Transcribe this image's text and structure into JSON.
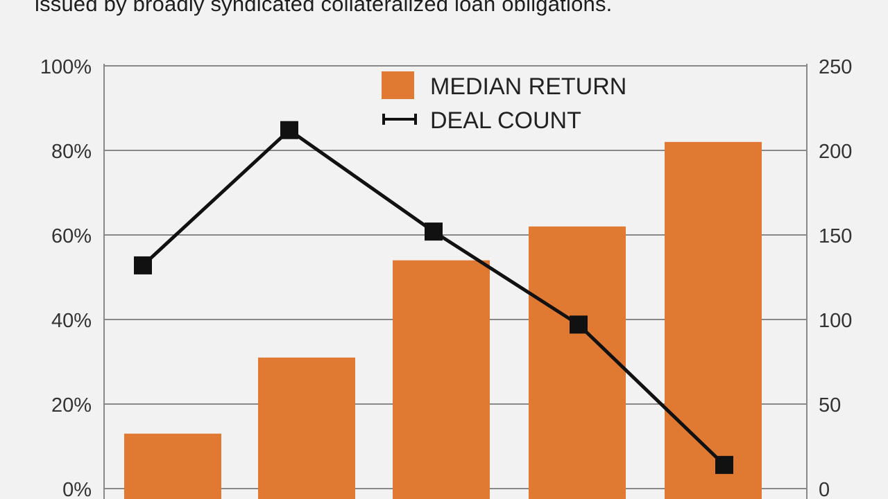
{
  "caption": "issued by broadly syndicated collateralized loan obligations.",
  "colors": {
    "bar": "#e07a33",
    "line": "#111111",
    "grid": "#888888",
    "background": "#f2f2f2"
  },
  "chart_data": {
    "type": "bar",
    "title": "",
    "xlabel": "",
    "ylabel": "",
    "categories": [
      "",
      "",
      "",
      "",
      ""
    ],
    "y_left": {
      "ticks": [
        "0%",
        "20%",
        "40%",
        "60%",
        "80%",
        "100%"
      ],
      "ylim": [
        0,
        100
      ]
    },
    "y_right": {
      "ticks": [
        "0",
        "50",
        "100",
        "150",
        "200",
        "250"
      ],
      "ylim": [
        0,
        250
      ]
    },
    "series": [
      {
        "name": "MEDIAN RETURN",
        "type": "bar",
        "axis": "left",
        "values": [
          13,
          31,
          54,
          62,
          82
        ]
      },
      {
        "name": "DEAL COUNT",
        "type": "line",
        "axis": "right",
        "values": [
          132,
          212,
          152,
          97,
          14
        ]
      }
    ],
    "grid": true,
    "legend": "top-center"
  }
}
